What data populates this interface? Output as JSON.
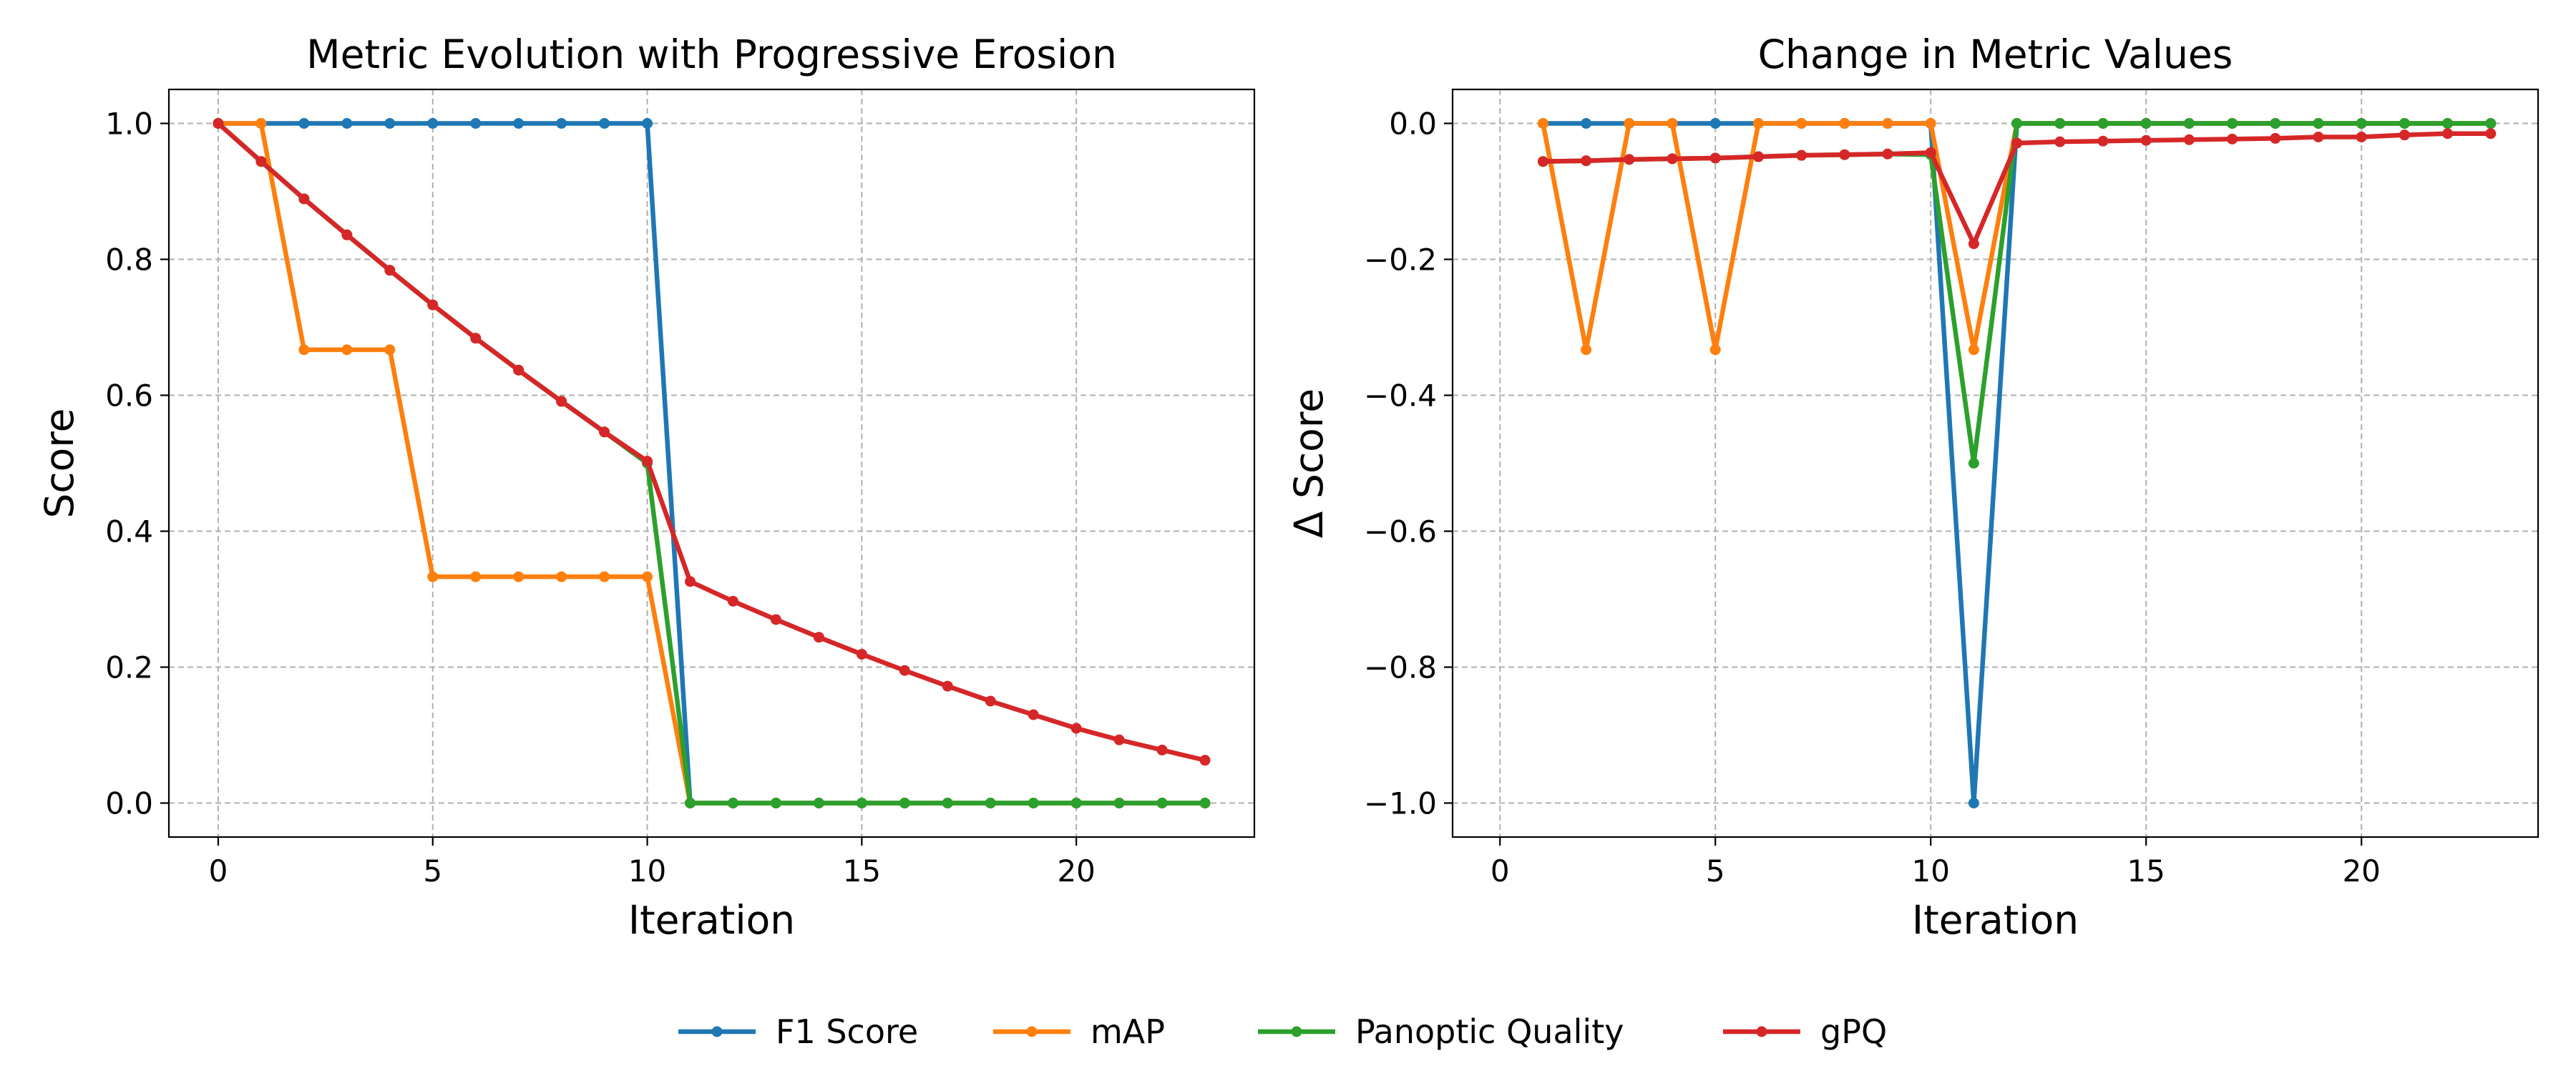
{
  "legend": {
    "placement": "bottom-center",
    "entries": [
      "F1 Score",
      "mAP",
      "Panoptic Quality",
      "gPQ"
    ]
  },
  "colors": {
    "F1 Score": "#1f77b4",
    "mAP": "#ff7f0e",
    "Panoptic Quality": "#2ca02c",
    "gPQ": "#d62728",
    "grid": "#b0b0b0"
  },
  "chart_data": [
    {
      "type": "line",
      "title": "Metric Evolution with Progressive Erosion",
      "xlabel": "Iteration",
      "ylabel": "Score",
      "xlim": [
        -1.15,
        24.15
      ],
      "ylim": [
        -0.05,
        1.05
      ],
      "xticks": [
        "0",
        "5",
        "10",
        "15",
        "20"
      ],
      "yticks": [
        "0.0",
        "0.2",
        "0.4",
        "0.6",
        "0.8",
        "1.0"
      ],
      "grid": true,
      "x": [
        0,
        1,
        2,
        3,
        4,
        5,
        6,
        7,
        8,
        9,
        10,
        11,
        12,
        13,
        14,
        15,
        16,
        17,
        18,
        19,
        20,
        21,
        22,
        23
      ],
      "series": [
        {
          "name": "F1 Score",
          "values": [
            1,
            1,
            1,
            1,
            1,
            1,
            1,
            1,
            1,
            1,
            1,
            0,
            0,
            0,
            0,
            0,
            0,
            0,
            0,
            0,
            0,
            0,
            0,
            0
          ]
        },
        {
          "name": "mAP",
          "values": [
            1,
            1,
            0.667,
            0.667,
            0.667,
            0.333,
            0.333,
            0.333,
            0.333,
            0.333,
            0.333,
            0,
            0,
            0,
            0,
            0,
            0,
            0,
            0,
            0,
            0,
            0,
            0,
            0
          ]
        },
        {
          "name": "Panoptic Quality",
          "values": [
            1,
            0.944,
            0.889,
            0.836,
            0.784,
            0.733,
            0.684,
            0.637,
            0.591,
            0.546,
            0.5,
            0,
            0,
            0,
            0,
            0,
            0,
            0,
            0,
            0,
            0,
            0,
            0,
            0
          ]
        },
        {
          "name": "gPQ",
          "values": [
            1,
            0.944,
            0.889,
            0.836,
            0.784,
            0.733,
            0.684,
            0.637,
            0.591,
            0.546,
            0.503,
            0.326,
            0.297,
            0.27,
            0.244,
            0.219,
            0.195,
            0.172,
            0.15,
            0.13,
            0.11,
            0.093,
            0.078,
            0.063
          ]
        }
      ]
    },
    {
      "type": "line",
      "title": "Change in Metric Values",
      "xlabel": "Iteration",
      "ylabel": "Δ Score",
      "xlim": [
        -1.1,
        24.1
      ],
      "ylim": [
        -1.05,
        0.05
      ],
      "xticks": [
        "0",
        "5",
        "10",
        "15",
        "20"
      ],
      "yticks": [
        "−1.0",
        "−0.8",
        "−0.6",
        "−0.4",
        "−0.2",
        "0.0"
      ],
      "grid": true,
      "x": [
        1,
        2,
        3,
        4,
        5,
        6,
        7,
        8,
        9,
        10,
        11,
        12,
        13,
        14,
        15,
        16,
        17,
        18,
        19,
        20,
        21,
        22,
        23
      ],
      "series": [
        {
          "name": "F1 Score",
          "values": [
            0,
            0,
            0,
            0,
            0,
            0,
            0,
            0,
            0,
            0,
            -1,
            0,
            0,
            0,
            0,
            0,
            0,
            0,
            0,
            0,
            0,
            0,
            0
          ]
        },
        {
          "name": "mAP",
          "values": [
            0,
            -0.333,
            0,
            0,
            -0.333,
            0,
            0,
            0,
            0,
            0,
            -0.333,
            0,
            0,
            0,
            0,
            0,
            0,
            0,
            0,
            0,
            0,
            0,
            0
          ]
        },
        {
          "name": "Panoptic Quality",
          "values": [
            -0.056,
            -0.055,
            -0.053,
            -0.052,
            -0.051,
            -0.049,
            -0.047,
            -0.046,
            -0.045,
            -0.046,
            -0.5,
            0,
            0,
            0,
            0,
            0,
            0,
            0,
            0,
            0,
            0,
            0,
            0
          ]
        },
        {
          "name": "gPQ",
          "values": [
            -0.056,
            -0.055,
            -0.053,
            -0.052,
            -0.051,
            -0.049,
            -0.047,
            -0.046,
            -0.045,
            -0.043,
            -0.177,
            -0.029,
            -0.027,
            -0.026,
            -0.025,
            -0.024,
            -0.023,
            -0.022,
            -0.02,
            -0.02,
            -0.017,
            -0.015,
            -0.015
          ]
        }
      ]
    }
  ]
}
